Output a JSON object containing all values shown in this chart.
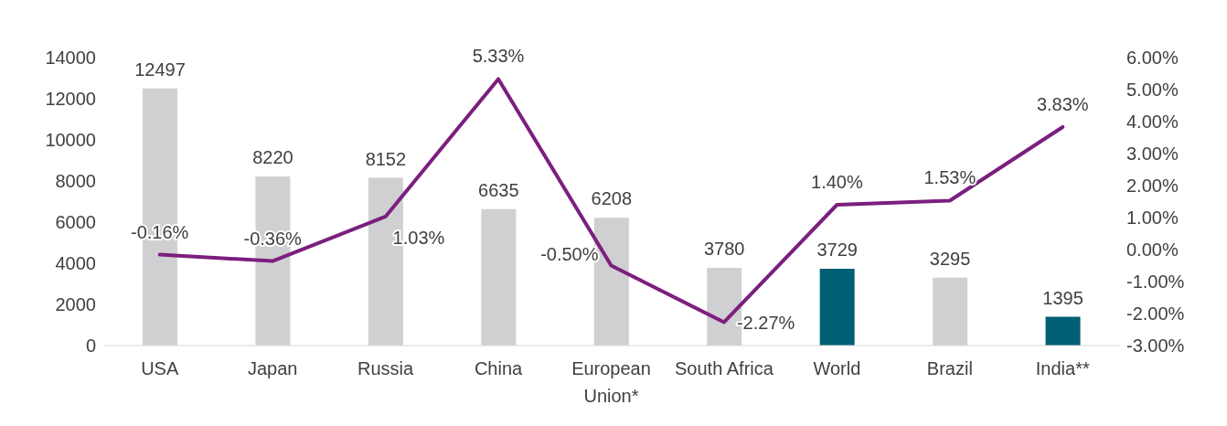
{
  "chart_data": {
    "type": "bar",
    "categories": [
      "USA",
      "Japan",
      "Russia",
      "China",
      "European Union*",
      "South Africa",
      "World",
      "Brazil",
      "India**"
    ],
    "series": [
      {
        "colors": [
          "#d0d0d2",
          "#d0d0d2",
          "#d0d0d2",
          "#d0d0d2",
          "#d0d0d2",
          "#d0d0d2",
          "#005f73",
          "#d0d0d2",
          "#005f73"
        ],
        "values": [
          12497,
          8220,
          8152,
          6635,
          6208,
          3780,
          3729,
          3295,
          1395
        ],
        "value_labels": [
          "12497",
          "8220",
          "8152",
          "6635",
          "6208",
          "3780",
          "3729",
          "3295",
          "1395"
        ]
      },
      {
        "type": "line",
        "axis": "y2",
        "color": "#7b1f7e",
        "values": [
          -0.16,
          -0.36,
          1.03,
          5.33,
          -0.5,
          -2.27,
          1.4,
          1.53,
          3.83
        ],
        "value_labels": [
          "-0.16%",
          "-0.36%",
          "1.03%",
          "5.33%",
          "-0.50%",
          "-2.27%",
          "1.40%",
          "1.53%",
          "3.83%"
        ]
      }
    ],
    "ylim": [
      0,
      14000
    ],
    "yticks": [
      0,
      2000,
      4000,
      6000,
      8000,
      10000,
      12000,
      14000
    ],
    "y2lim": [
      -3,
      6
    ],
    "y2ticks": [
      {
        "value": -3,
        "label": "-3.00%"
      },
      {
        "value": -2,
        "label": "-2.00%"
      },
      {
        "value": -1,
        "label": "-1.00%"
      },
      {
        "value": 0,
        "label": "0.00%"
      },
      {
        "value": 1,
        "label": "1.00%"
      },
      {
        "value": 2,
        "label": "2.00%"
      },
      {
        "value": 3,
        "label": "3.00%"
      },
      {
        "value": 4,
        "label": "4.00%"
      },
      {
        "value": 5,
        "label": "5.00%"
      },
      {
        "value": 6,
        "label": "6.00%"
      }
    ],
    "grid": false,
    "legend": false,
    "marker": "none",
    "line_style": "solid"
  }
}
